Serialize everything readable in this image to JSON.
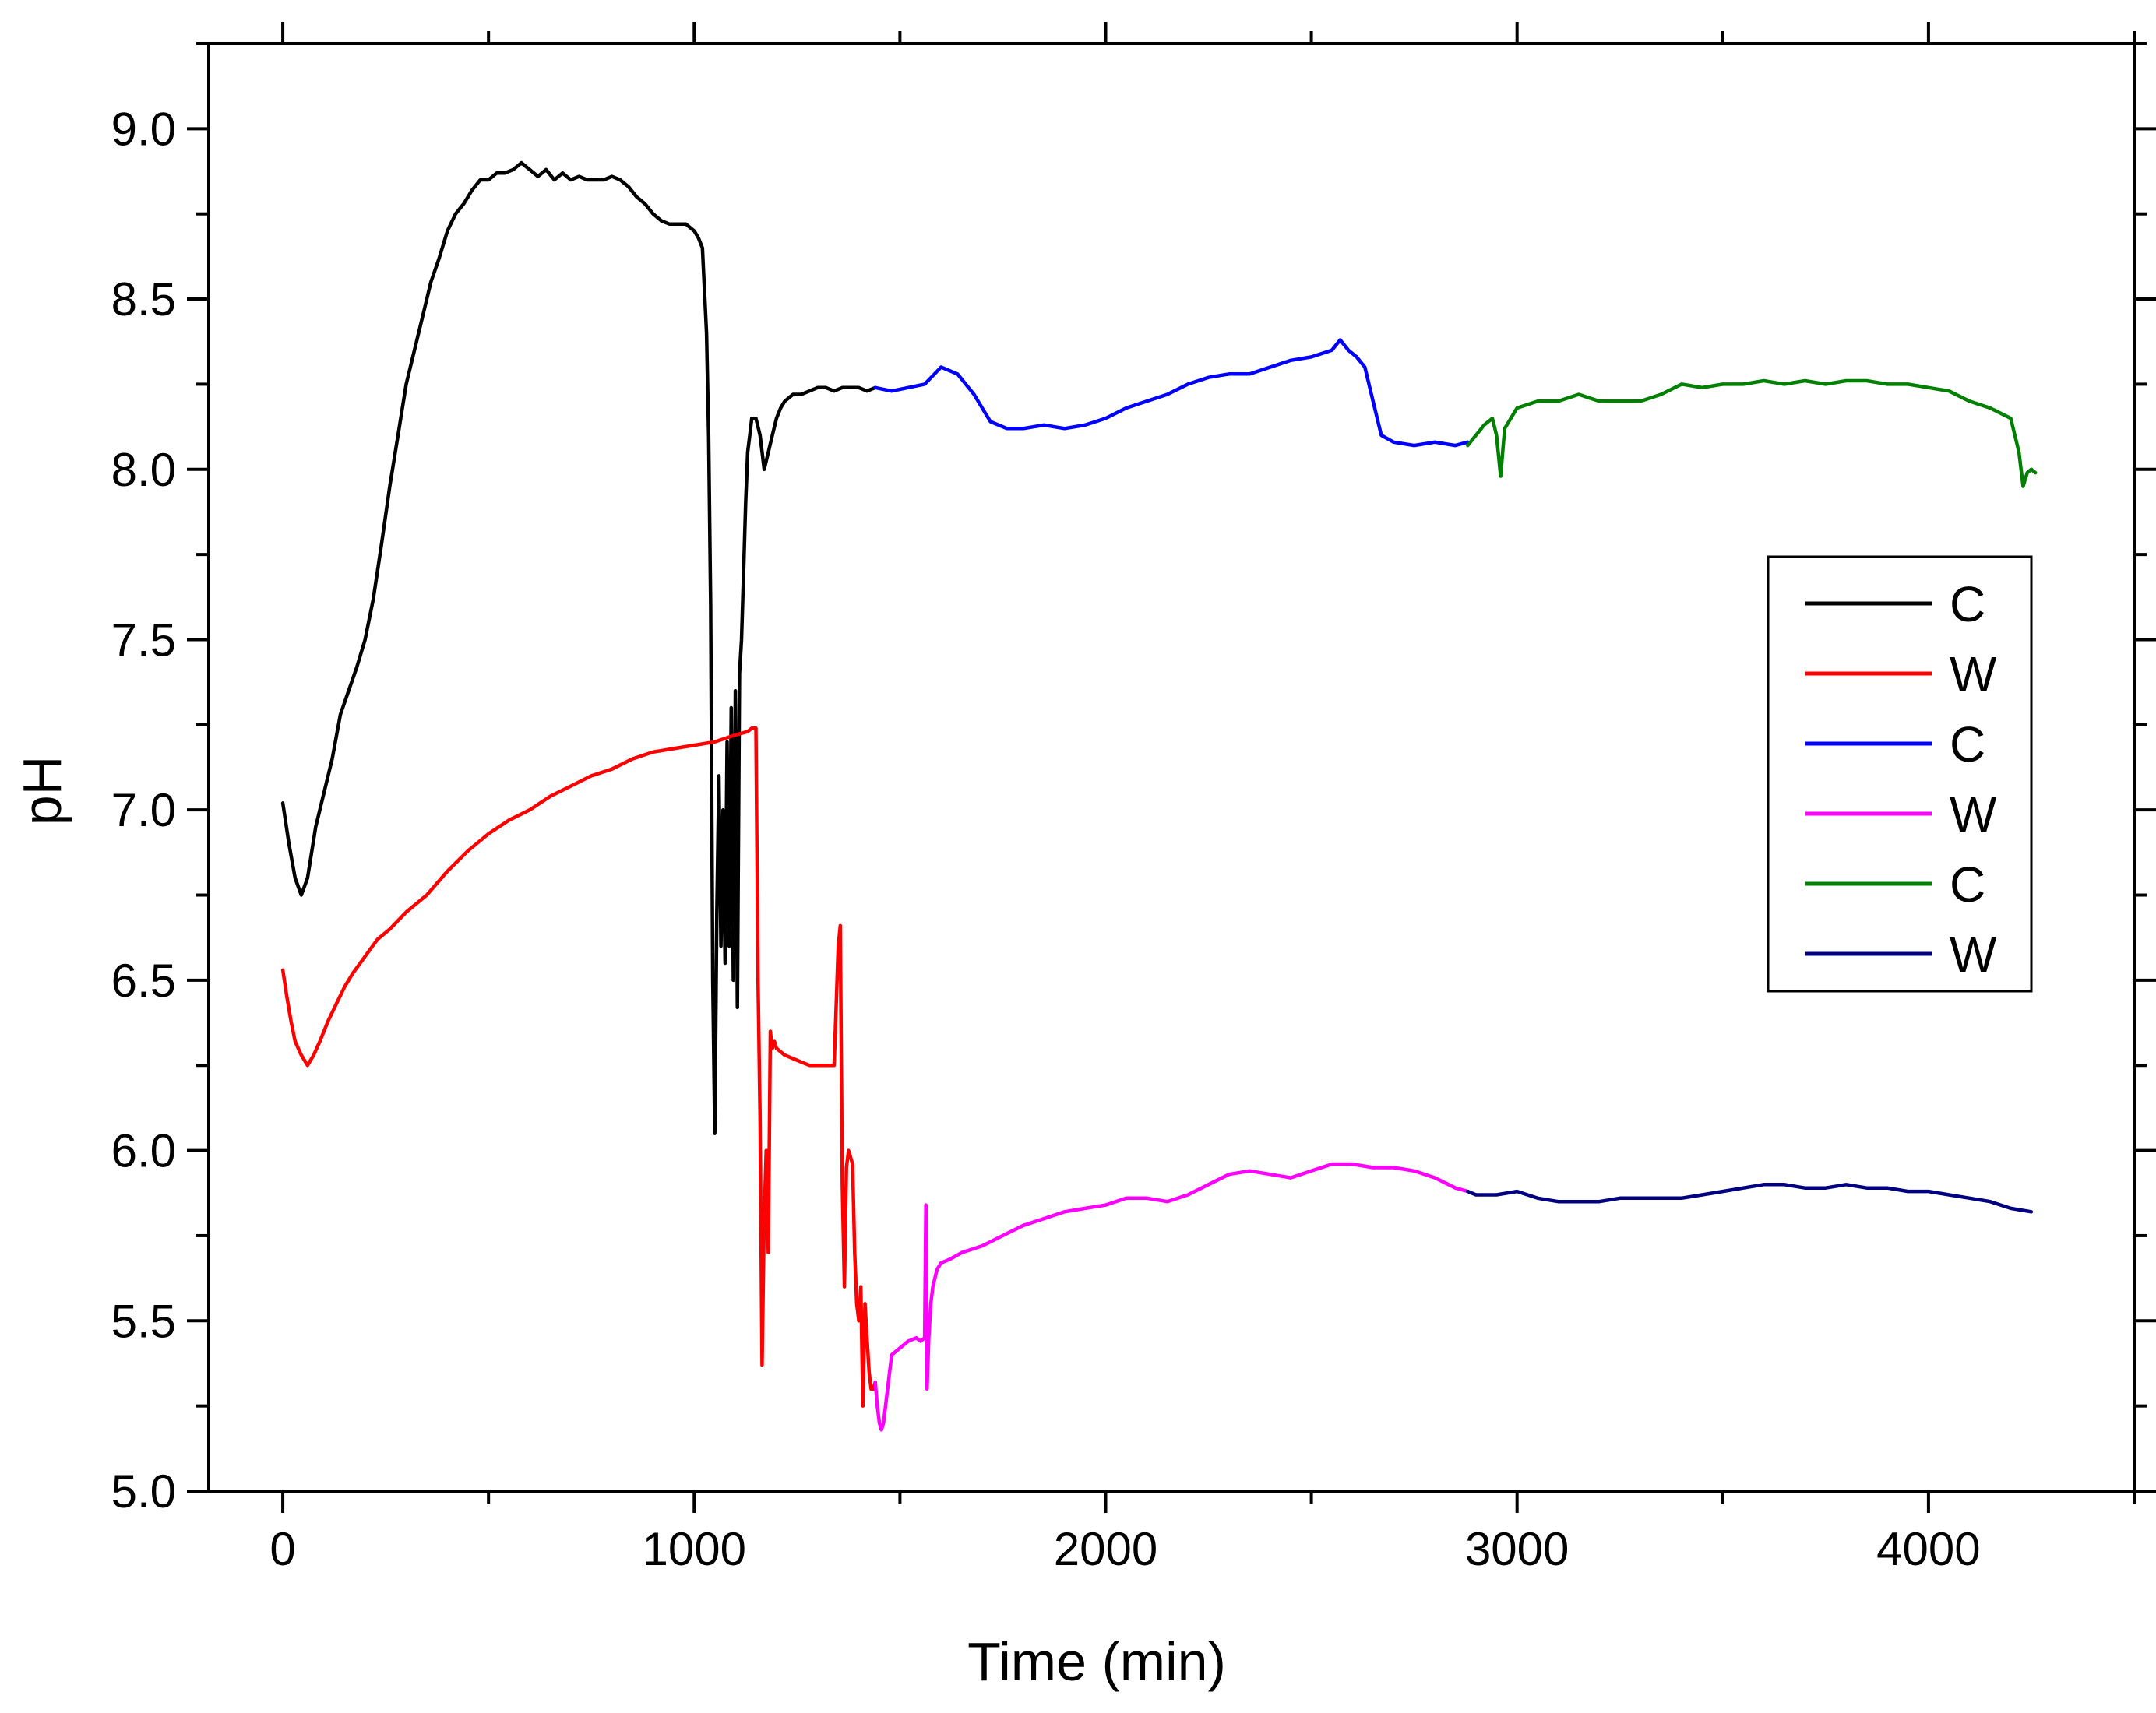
{
  "chart_data": {
    "type": "line",
    "title": "",
    "xlabel": "Time (min)",
    "ylabel": "pH",
    "xlim": [
      -180,
      4500
    ],
    "ylim": [
      5.0,
      9.25
    ],
    "xticks": [
      0,
      1000,
      2000,
      3000,
      4000
    ],
    "xtick_labels": [
      "0",
      "1000",
      "2000",
      "3000",
      "4000"
    ],
    "yticks": [
      5.0,
      5.5,
      6.0,
      6.5,
      7.0,
      7.5,
      8.0,
      8.5,
      9.0
    ],
    "ytick_labels": [
      "5.0",
      "5.5",
      "6.0",
      "6.5",
      "7.0",
      "7.5",
      "8.0",
      "8.5",
      "9.0"
    ],
    "grid": false,
    "legend_position": "right",
    "series": [
      {
        "name": "C",
        "color": "#000000",
        "x": [
          0,
          15,
          30,
          45,
          60,
          80,
          100,
          120,
          140,
          160,
          180,
          200,
          220,
          240,
          260,
          280,
          300,
          320,
          340,
          360,
          380,
          400,
          420,
          440,
          460,
          480,
          500,
          520,
          540,
          560,
          580,
          600,
          620,
          640,
          660,
          680,
          700,
          720,
          740,
          760,
          780,
          800,
          820,
          840,
          860,
          880,
          900,
          920,
          940,
          960,
          980,
          1000,
          1010,
          1020,
          1030,
          1035,
          1040,
          1045,
          1050,
          1055,
          1060,
          1065,
          1070,
          1075,
          1080,
          1085,
          1090,
          1095,
          1100,
          1105,
          1110,
          1115,
          1120,
          1125,
          1130,
          1135,
          1140,
          1150,
          1160,
          1170,
          1180,
          1190,
          1200,
          1210,
          1220,
          1240,
          1260,
          1280,
          1300,
          1320,
          1340,
          1360,
          1380,
          1400,
          1420,
          1440
        ],
        "y": [
          7.02,
          6.9,
          6.8,
          6.75,
          6.8,
          6.95,
          7.05,
          7.15,
          7.28,
          7.35,
          7.42,
          7.5,
          7.62,
          7.78,
          7.95,
          8.1,
          8.25,
          8.35,
          8.45,
          8.55,
          8.62,
          8.7,
          8.75,
          8.78,
          8.82,
          8.85,
          8.85,
          8.87,
          8.87,
          8.88,
          8.9,
          8.88,
          8.86,
          8.88,
          8.85,
          8.87,
          8.85,
          8.86,
          8.85,
          8.85,
          8.85,
          8.86,
          8.85,
          8.83,
          8.8,
          8.78,
          8.75,
          8.73,
          8.72,
          8.72,
          8.72,
          8.7,
          8.68,
          8.65,
          8.4,
          8.1,
          7.6,
          6.5,
          6.05,
          6.7,
          7.1,
          6.6,
          7.0,
          6.55,
          7.2,
          6.6,
          7.3,
          6.5,
          7.35,
          6.42,
          7.4,
          7.5,
          7.7,
          7.9,
          8.05,
          8.1,
          8.15,
          8.15,
          8.1,
          8.0,
          8.05,
          8.1,
          8.15,
          8.18,
          8.2,
          8.22,
          8.22,
          8.23,
          8.24,
          8.24,
          8.23,
          8.24,
          8.24,
          8.24,
          8.23,
          8.24
        ]
      },
      {
        "name": "W",
        "color": "#ff0000",
        "x": [
          0,
          10,
          20,
          30,
          45,
          60,
          75,
          90,
          110,
          130,
          150,
          170,
          200,
          230,
          260,
          300,
          350,
          400,
          450,
          500,
          550,
          600,
          650,
          700,
          750,
          800,
          850,
          900,
          950,
          1000,
          1050,
          1100,
          1130,
          1140,
          1150,
          1155,
          1160,
          1165,
          1170,
          1175,
          1180,
          1185,
          1190,
          1195,
          1200,
          1210,
          1220,
          1240,
          1260,
          1280,
          1300,
          1320,
          1340,
          1350,
          1355,
          1360,
          1365,
          1370,
          1375,
          1380,
          1385,
          1390,
          1395,
          1400,
          1405,
          1410,
          1415,
          1420,
          1425,
          1430,
          1435,
          1440
        ],
        "y": [
          6.53,
          6.45,
          6.38,
          6.32,
          6.28,
          6.25,
          6.28,
          6.32,
          6.38,
          6.43,
          6.48,
          6.52,
          6.57,
          6.62,
          6.65,
          6.7,
          6.75,
          6.82,
          6.88,
          6.93,
          6.97,
          7.0,
          7.04,
          7.07,
          7.1,
          7.12,
          7.15,
          7.17,
          7.18,
          7.19,
          7.2,
          7.22,
          7.23,
          7.24,
          7.24,
          6.5,
          6.1,
          5.37,
          5.8,
          6.0,
          5.7,
          6.35,
          6.3,
          6.32,
          6.3,
          6.29,
          6.28,
          6.27,
          6.26,
          6.25,
          6.25,
          6.25,
          6.25,
          6.6,
          6.66,
          5.9,
          5.6,
          5.95,
          6.0,
          5.98,
          5.96,
          5.7,
          5.55,
          5.5,
          5.6,
          5.25,
          5.55,
          5.45,
          5.35,
          5.3,
          5.3,
          5.32
        ]
      },
      {
        "name": "C",
        "color": "#0000ff",
        "x": [
          1440,
          1480,
          1520,
          1560,
          1600,
          1640,
          1680,
          1700,
          1720,
          1760,
          1800,
          1850,
          1900,
          1950,
          2000,
          2050,
          2100,
          2150,
          2200,
          2250,
          2300,
          2350,
          2400,
          2450,
          2500,
          2550,
          2570,
          2590,
          2610,
          2630,
          2650,
          2670,
          2700,
          2750,
          2800,
          2850,
          2880
        ],
        "y": [
          8.24,
          8.23,
          8.24,
          8.25,
          8.3,
          8.28,
          8.22,
          8.18,
          8.14,
          8.12,
          8.12,
          8.13,
          8.12,
          8.13,
          8.15,
          8.18,
          8.2,
          8.22,
          8.25,
          8.27,
          8.28,
          8.28,
          8.3,
          8.32,
          8.33,
          8.35,
          8.38,
          8.35,
          8.33,
          8.3,
          8.2,
          8.1,
          8.08,
          8.07,
          8.08,
          8.07,
          8.08
        ]
      },
      {
        "name": "W",
        "color": "#ff00ff",
        "x": [
          1440,
          1445,
          1450,
          1455,
          1460,
          1470,
          1480,
          1500,
          1520,
          1540,
          1550,
          1560,
          1563,
          1566,
          1570,
          1575,
          1580,
          1590,
          1600,
          1620,
          1650,
          1700,
          1750,
          1800,
          1850,
          1900,
          1950,
          2000,
          2050,
          2100,
          2150,
          2200,
          2250,
          2300,
          2350,
          2400,
          2450,
          2500,
          2550,
          2600,
          2650,
          2700,
          2750,
          2800,
          2850,
          2880
        ],
        "y": [
          5.32,
          5.25,
          5.2,
          5.18,
          5.2,
          5.3,
          5.4,
          5.42,
          5.44,
          5.45,
          5.44,
          5.45,
          5.84,
          5.3,
          5.45,
          5.55,
          5.6,
          5.65,
          5.67,
          5.68,
          5.7,
          5.72,
          5.75,
          5.78,
          5.8,
          5.82,
          5.83,
          5.84,
          5.86,
          5.86,
          5.85,
          5.87,
          5.9,
          5.93,
          5.94,
          5.93,
          5.92,
          5.94,
          5.96,
          5.96,
          5.95,
          5.95,
          5.94,
          5.92,
          5.89,
          5.88
        ]
      },
      {
        "name": "C",
        "color": "#008000",
        "x": [
          2880,
          2900,
          2920,
          2940,
          2950,
          2960,
          2970,
          3000,
          3050,
          3100,
          3150,
          3200,
          3250,
          3300,
          3350,
          3400,
          3450,
          3500,
          3550,
          3600,
          3650,
          3700,
          3750,
          3800,
          3850,
          3900,
          3950,
          4000,
          4050,
          4100,
          4150,
          4200,
          4210,
          4220,
          4230,
          4240,
          4250,
          4260
        ],
        "y": [
          8.07,
          8.1,
          8.13,
          8.15,
          8.1,
          7.98,
          8.12,
          8.18,
          8.2,
          8.2,
          8.22,
          8.2,
          8.2,
          8.2,
          8.22,
          8.25,
          8.24,
          8.25,
          8.25,
          8.26,
          8.25,
          8.26,
          8.25,
          8.26,
          8.26,
          8.25,
          8.25,
          8.24,
          8.23,
          8.2,
          8.18,
          8.15,
          8.1,
          8.05,
          7.95,
          7.99,
          8.0,
          7.99
        ]
      },
      {
        "name": "W",
        "color": "#000080",
        "x": [
          2880,
          2900,
          2950,
          3000,
          3050,
          3100,
          3150,
          3200,
          3250,
          3300,
          3350,
          3400,
          3450,
          3500,
          3550,
          3600,
          3650,
          3700,
          3750,
          3800,
          3850,
          3900,
          3950,
          4000,
          4050,
          4100,
          4150,
          4200,
          4250
        ],
        "y": [
          5.88,
          5.87,
          5.87,
          5.88,
          5.86,
          5.85,
          5.85,
          5.85,
          5.86,
          5.86,
          5.86,
          5.86,
          5.87,
          5.88,
          5.89,
          5.9,
          5.9,
          5.89,
          5.89,
          5.9,
          5.89,
          5.89,
          5.88,
          5.88,
          5.87,
          5.86,
          5.85,
          5.83,
          5.82
        ]
      }
    ]
  }
}
